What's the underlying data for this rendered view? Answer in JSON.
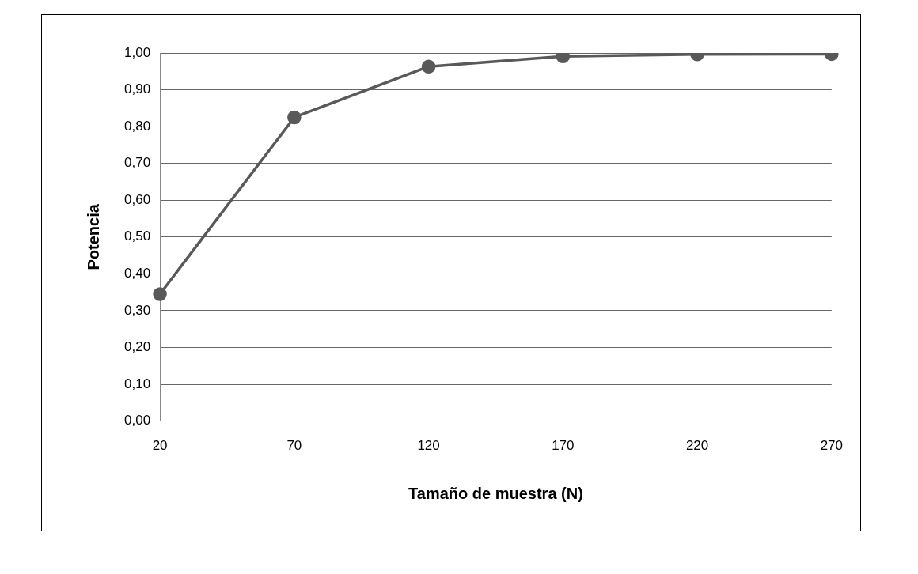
{
  "chart_data": {
    "type": "line",
    "xlabel": "Tamaño de muestra (N)",
    "ylabel": "Potencia",
    "categories": [
      "20",
      "70",
      "120",
      "170",
      "220",
      "270"
    ],
    "series": [
      {
        "color": "#595959",
        "values": [
          0.345,
          0.825,
          0.963,
          0.991,
          0.996,
          0.997
        ]
      }
    ],
    "ylim": [
      0,
      1
    ],
    "yticks": [
      {
        "value": 0,
        "label": "0,00"
      },
      {
        "value": 0.1,
        "label": "0,10"
      },
      {
        "value": 0.2,
        "label": "0,20"
      },
      {
        "value": 0.3,
        "label": "0,30"
      },
      {
        "value": 0.4,
        "label": "0,40"
      },
      {
        "value": 0.5,
        "label": "0,50"
      },
      {
        "value": 0.6,
        "label": "0,60"
      },
      {
        "value": 0.7,
        "label": "0,70"
      },
      {
        "value": 0.8,
        "label": "0,80"
      },
      {
        "value": 0.9,
        "label": "0,90"
      },
      {
        "value": 1,
        "label": "1,00"
      }
    ],
    "grid": "y",
    "marker": "circle",
    "line_style": "solid"
  }
}
